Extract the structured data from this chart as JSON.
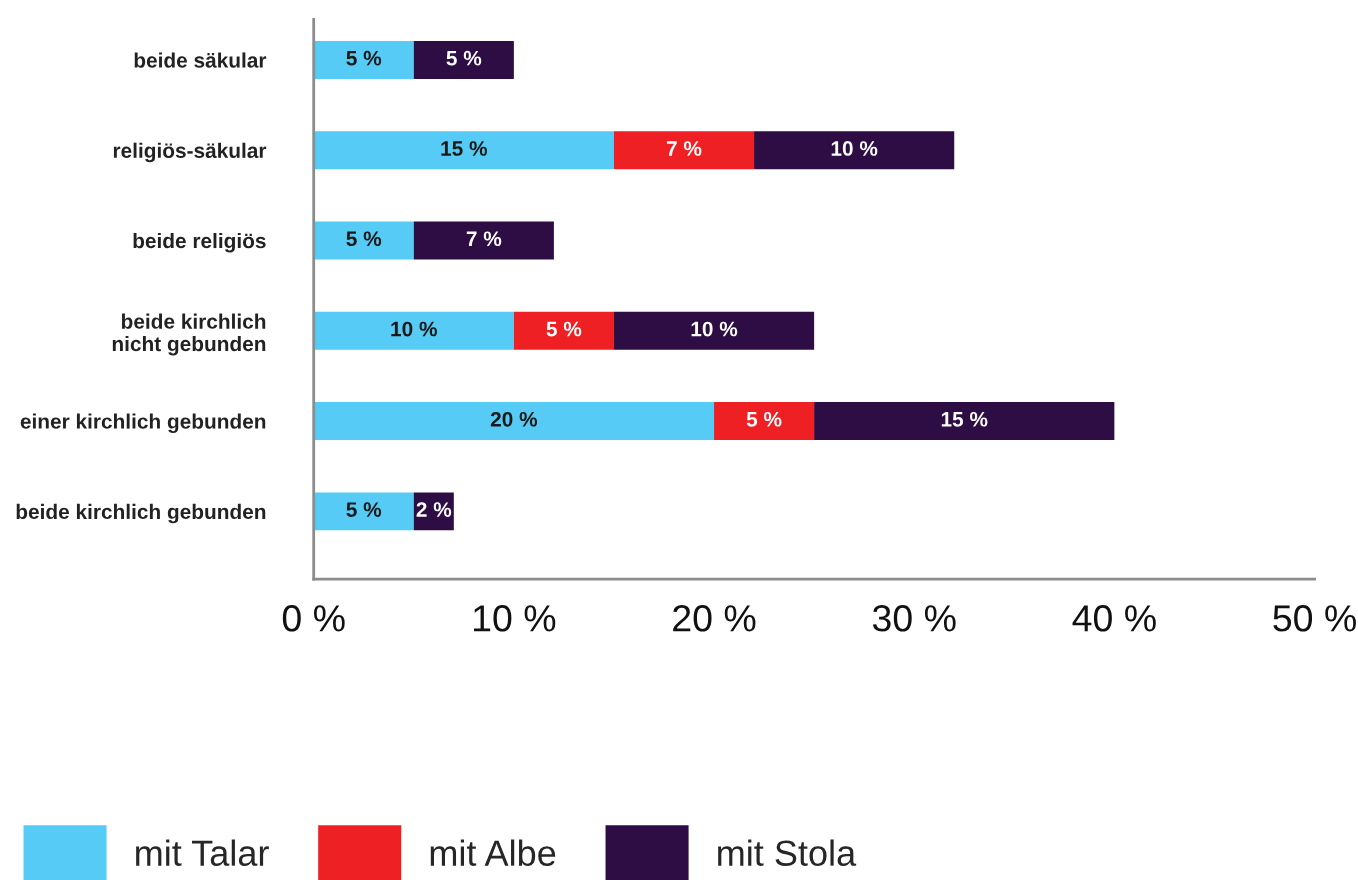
{
  "chart_data": {
    "type": "bar",
    "orientation": "horizontal",
    "stacked": true,
    "categories": [
      "beide säkular",
      "religiös-säkular",
      "beide religiös",
      "beide kirchlich\nnicht gebunden",
      "einer kirchlich gebunden",
      "beide kirchlich gebunden"
    ],
    "series": [
      {
        "name": "mit Talar",
        "color": "#55cbf5",
        "values": [
          5,
          15,
          5,
          10,
          20,
          5
        ],
        "value_labels": [
          "5 %",
          "15 %",
          "5 %",
          "10 %",
          "20 %",
          "5 %"
        ]
      },
      {
        "name": "mit Albe",
        "color": "#ee2024",
        "values": [
          null,
          7,
          null,
          5,
          5,
          null
        ],
        "value_labels": [
          null,
          "7 %",
          null,
          "5 %",
          "5 %",
          null
        ]
      },
      {
        "name": "mit Stola",
        "color": "#2e0d45",
        "values": [
          5,
          10,
          7,
          10,
          15,
          2
        ],
        "value_labels": [
          "5 %",
          "10 %",
          "7 %",
          "10 %",
          "15 %",
          "2 %"
        ]
      }
    ],
    "xlim": [
      0,
      50
    ],
    "xticks": [
      {
        "value": 0,
        "label": "0 %"
      },
      {
        "value": 10,
        "label": "10 %"
      },
      {
        "value": 20,
        "label": "20 %"
      },
      {
        "value": 30,
        "label": "30 %"
      },
      {
        "value": 40,
        "label": "40 %"
      },
      {
        "value": 50,
        "label": "50 %"
      }
    ],
    "legend": "bottom"
  }
}
